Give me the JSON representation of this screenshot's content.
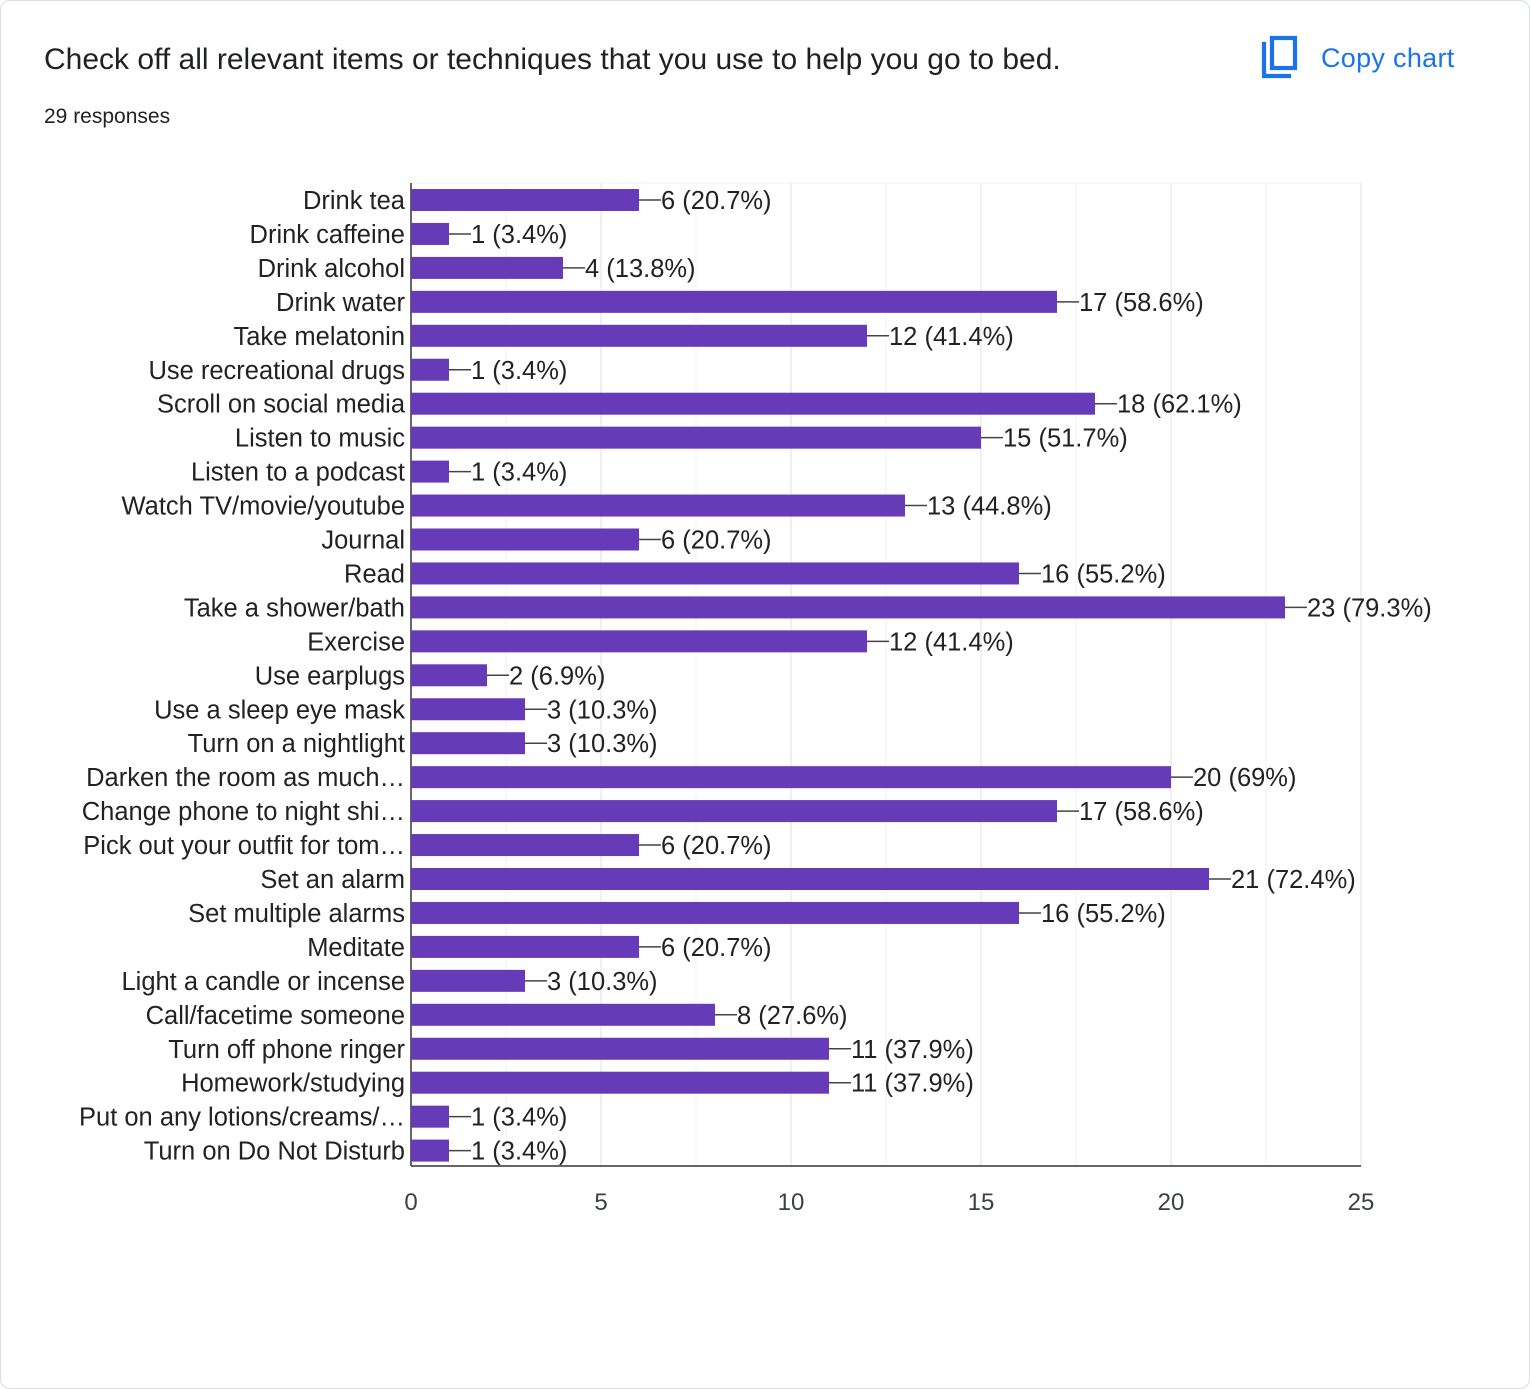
{
  "question": {
    "title": "Check off all relevant items or techniques that you use to help you go to bed.",
    "responses": "29 responses"
  },
  "copy_button": {
    "label": "Copy chart",
    "icon": "copy-icon"
  },
  "colors": {
    "bar": "#673ab7",
    "accent": "#1a73e8",
    "grid": "#e8e8e8",
    "text": "#202124"
  },
  "chart_data": {
    "type": "bar",
    "orientation": "horizontal",
    "title": "Check off all relevant items or techniques that you use to help you go to bed.",
    "xlim": [
      0,
      25
    ],
    "xticks": [
      0,
      5,
      10,
      15,
      20,
      25
    ],
    "categories": [
      "Drink tea",
      "Drink caffeine",
      "Drink alcohol",
      "Drink water",
      "Take melatonin",
      "Use recreational drugs",
      "Scroll on social media",
      "Listen to music",
      "Listen to a podcast",
      "Watch TV/movie/youtube",
      "Journal",
      "Read",
      "Take a shower/bath",
      "Exercise",
      "Use earplugs",
      "Use a sleep eye mask",
      "Turn on a nightlight",
      "Darken the room as much…",
      "Change phone to night shi…",
      "Pick out your outfit for tom…",
      "Set an alarm",
      "Set multiple alarms",
      "Meditate",
      "Light a candle or incense",
      "Call/facetime someone",
      "Turn off phone ringer",
      "Homework/studying",
      "Put on any lotions/creams/…",
      "Turn on Do Not Disturb"
    ],
    "values": [
      6,
      1,
      4,
      17,
      12,
      1,
      18,
      15,
      1,
      13,
      6,
      16,
      23,
      12,
      2,
      3,
      3,
      20,
      17,
      6,
      21,
      16,
      6,
      3,
      8,
      11,
      11,
      1,
      1
    ],
    "data_labels": [
      "6 (20.7%)",
      "1 (3.4%)",
      "4 (13.8%)",
      "17 (58.6%)",
      "12 (41.4%)",
      "1 (3.4%)",
      "18 (62.1%)",
      "15 (51.7%)",
      "1 (3.4%)",
      "13 (44.8%)",
      "6 (20.7%)",
      "16 (55.2%)",
      "23 (79.3%)",
      "12 (41.4%)",
      "2 (6.9%)",
      "3 (10.3%)",
      "3 (10.3%)",
      "20 (69%)",
      "17 (58.6%)",
      "6 (20.7%)",
      "21 (72.4%)",
      "16 (55.2%)",
      "6 (20.7%)",
      "3 (10.3%)",
      "8 (27.6%)",
      "11 (37.9%)",
      "11 (37.9%)",
      "1 (3.4%)",
      "1 (3.4%)"
    ],
    "grid": true,
    "legend": "none"
  }
}
